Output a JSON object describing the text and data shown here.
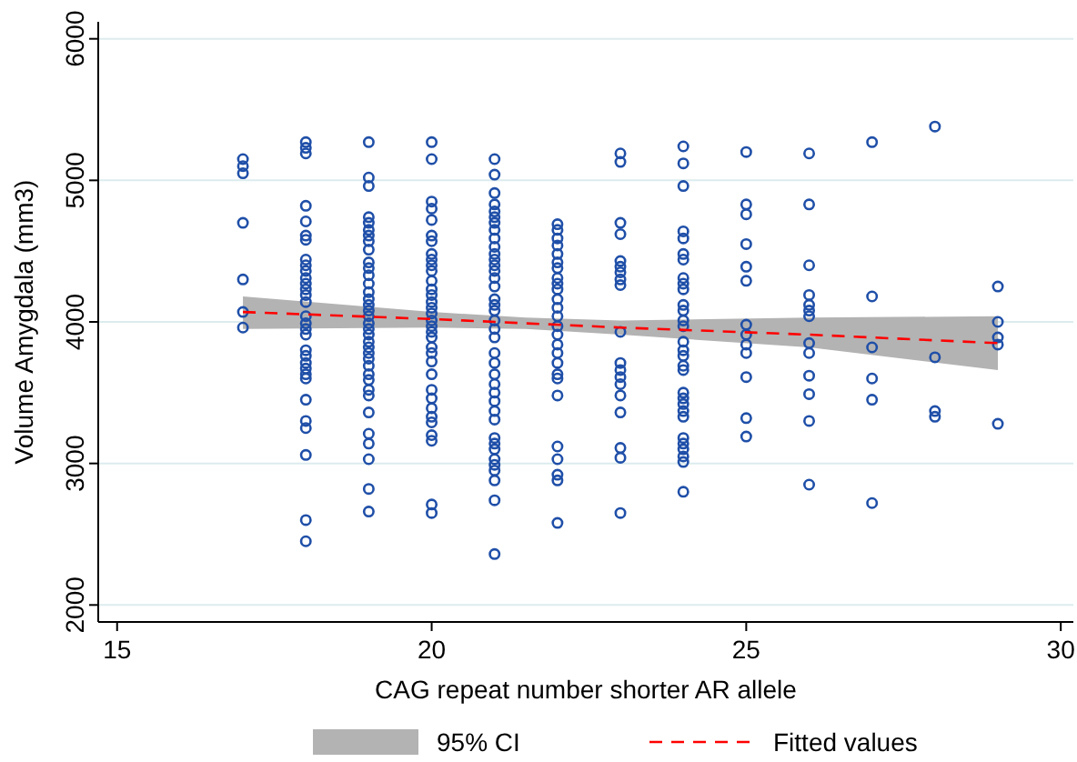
{
  "chart_data": {
    "type": "scatter",
    "xlabel": "CAG repeat number shorter AR allele",
    "ylabel": "Volume Amygdala (mm3)",
    "xlim": [
      14.7,
      30.2
    ],
    "xticks": [
      15,
      20,
      25,
      30
    ],
    "ylim": [
      1880,
      6120
    ],
    "yticks": [
      2000,
      3000,
      4000,
      5000,
      6000
    ],
    "grid": "y",
    "legend": "bottom",
    "annotations": [
      "95% CI"
    ],
    "marker": "circle",
    "series": [
      {
        "color": "#1f4fa8",
        "x": [
          17,
          17,
          17,
          17,
          17,
          17,
          17,
          18,
          18,
          18,
          18,
          18,
          18,
          18,
          18,
          18,
          18,
          18,
          18,
          18,
          18,
          18,
          18,
          18,
          18,
          18,
          18,
          18,
          18,
          18,
          18,
          18,
          18,
          18,
          18,
          18,
          18,
          18,
          19,
          19,
          19,
          19,
          19,
          19,
          19,
          19,
          19,
          19,
          19,
          19,
          19,
          19,
          19,
          19,
          19,
          19,
          19,
          19,
          19,
          19,
          19,
          19,
          19,
          19,
          19,
          19,
          19,
          19,
          19,
          19,
          19,
          19,
          19,
          19,
          20,
          20,
          20,
          20,
          20,
          20,
          20,
          20,
          20,
          20,
          20,
          20,
          20,
          20,
          20,
          20,
          20,
          20,
          20,
          20,
          20,
          20,
          20,
          20,
          20,
          20,
          20,
          20,
          20,
          20,
          20,
          20,
          20,
          20,
          21,
          21,
          21,
          21,
          21,
          21,
          21,
          21,
          21,
          21,
          21,
          21,
          21,
          21,
          21,
          21,
          21,
          21,
          21,
          21,
          21,
          21,
          21,
          21,
          21,
          21,
          21,
          21,
          21,
          21,
          21,
          21,
          21,
          21,
          21,
          21,
          21,
          21,
          21,
          22,
          22,
          22,
          22,
          22,
          22,
          22,
          22,
          22,
          22,
          22,
          22,
          22,
          22,
          22,
          22,
          22,
          22,
          22,
          22,
          22,
          22,
          22,
          22,
          22,
          22,
          23,
          23,
          23,
          23,
          23,
          23,
          23,
          23,
          23,
          23,
          23,
          23,
          23,
          23,
          23,
          23,
          23,
          23,
          23,
          24,
          24,
          24,
          24,
          24,
          24,
          24,
          24,
          24,
          24,
          24,
          24,
          24,
          24,
          24,
          24,
          24,
          24,
          24,
          24,
          24,
          24,
          24,
          24,
          24,
          24,
          24,
          24,
          24,
          24,
          25,
          25,
          25,
          25,
          25,
          25,
          25,
          25,
          25,
          25,
          25,
          25,
          25,
          26,
          26,
          26,
          26,
          26,
          26,
          26,
          26,
          26,
          26,
          26,
          26,
          26,
          27,
          27,
          27,
          27,
          27,
          27,
          28,
          28,
          28,
          28,
          29,
          29,
          29,
          29,
          29
        ],
        "values": [
          5150,
          5100,
          5050,
          4700,
          4300,
          4070,
          3960,
          5270,
          5230,
          5190,
          4820,
          4710,
          4610,
          4580,
          4440,
          4400,
          4360,
          4310,
          4270,
          4230,
          4190,
          4140,
          4040,
          3990,
          3950,
          3910,
          3800,
          3760,
          3710,
          3670,
          3630,
          3600,
          3450,
          3300,
          3250,
          3060,
          2600,
          2450,
          5270,
          5020,
          4960,
          4740,
          4700,
          4650,
          4610,
          4570,
          4510,
          4420,
          4380,
          4330,
          4270,
          4210,
          4160,
          4120,
          4080,
          4040,
          3990,
          3950,
          3910,
          3860,
          3820,
          3780,
          3740,
          3690,
          3630,
          3590,
          3520,
          3480,
          3360,
          3210,
          3140,
          3030,
          2820,
          2660,
          5270,
          5150,
          4850,
          4800,
          4720,
          4610,
          4570,
          4480,
          4440,
          4400,
          4360,
          4290,
          4230,
          4190,
          4140,
          4100,
          4060,
          4010,
          3970,
          3930,
          3890,
          3820,
          3780,
          3720,
          3630,
          3520,
          3460,
          3390,
          3330,
          3290,
          3200,
          3160,
          2710,
          2650,
          5150,
          5040,
          4910,
          4830,
          4780,
          4740,
          4700,
          4650,
          4590,
          4530,
          4480,
          4440,
          4400,
          4360,
          4310,
          4250,
          4160,
          4120,
          4080,
          4010,
          3950,
          3890,
          3780,
          3710,
          3630,
          3560,
          3500,
          3440,
          3370,
          3310,
          3180,
          3140,
          3100,
          3030,
          2990,
          2950,
          2880,
          2740,
          2360,
          4690,
          4650,
          4590,
          4540,
          4480,
          4420,
          4380,
          4310,
          4270,
          4230,
          4160,
          4100,
          4040,
          3970,
          3910,
          3840,
          3780,
          3710,
          3630,
          3600,
          3480,
          3120,
          3030,
          2920,
          2880,
          2580,
          5190,
          5130,
          4700,
          4620,
          4430,
          4390,
          4350,
          4300,
          4260,
          3930,
          3710,
          3660,
          3610,
          3560,
          3480,
          3360,
          3110,
          3040,
          2650,
          5240,
          5120,
          4960,
          4640,
          4590,
          4480,
          4440,
          4310,
          4270,
          4230,
          4120,
          4080,
          4010,
          3970,
          3860,
          3800,
          3760,
          3690,
          3660,
          3500,
          3460,
          3420,
          3370,
          3330,
          3180,
          3140,
          3100,
          3050,
          3010,
          2800,
          5200,
          4830,
          4760,
          4550,
          4390,
          4290,
          3980,
          3910,
          3840,
          3780,
          3610,
          3320,
          3190,
          5190,
          4830,
          4400,
          4190,
          4120,
          4080,
          4040,
          3850,
          3780,
          3620,
          3490,
          3300,
          2850,
          5270,
          4180,
          3820,
          3600,
          3450,
          2720,
          5380,
          3750,
          3370,
          3330,
          4250,
          4000,
          3890,
          3840,
          3280
        ]
      },
      {
        "type": "line",
        "name": "Fitted values",
        "color": "#ff0000",
        "line_style": "dashed",
        "marker": "none",
        "x": [
          17,
          20,
          21.5,
          23,
          26,
          29
        ],
        "values": [
          4070,
          4020,
          3990,
          3960,
          3910,
          3850
        ],
        "lower": [
          3950,
          3960,
          3950,
          3910,
          3820,
          3660
        ],
        "upper": [
          4180,
          4070,
          4030,
          4010,
          4030,
          4040
        ]
      }
    ]
  }
}
